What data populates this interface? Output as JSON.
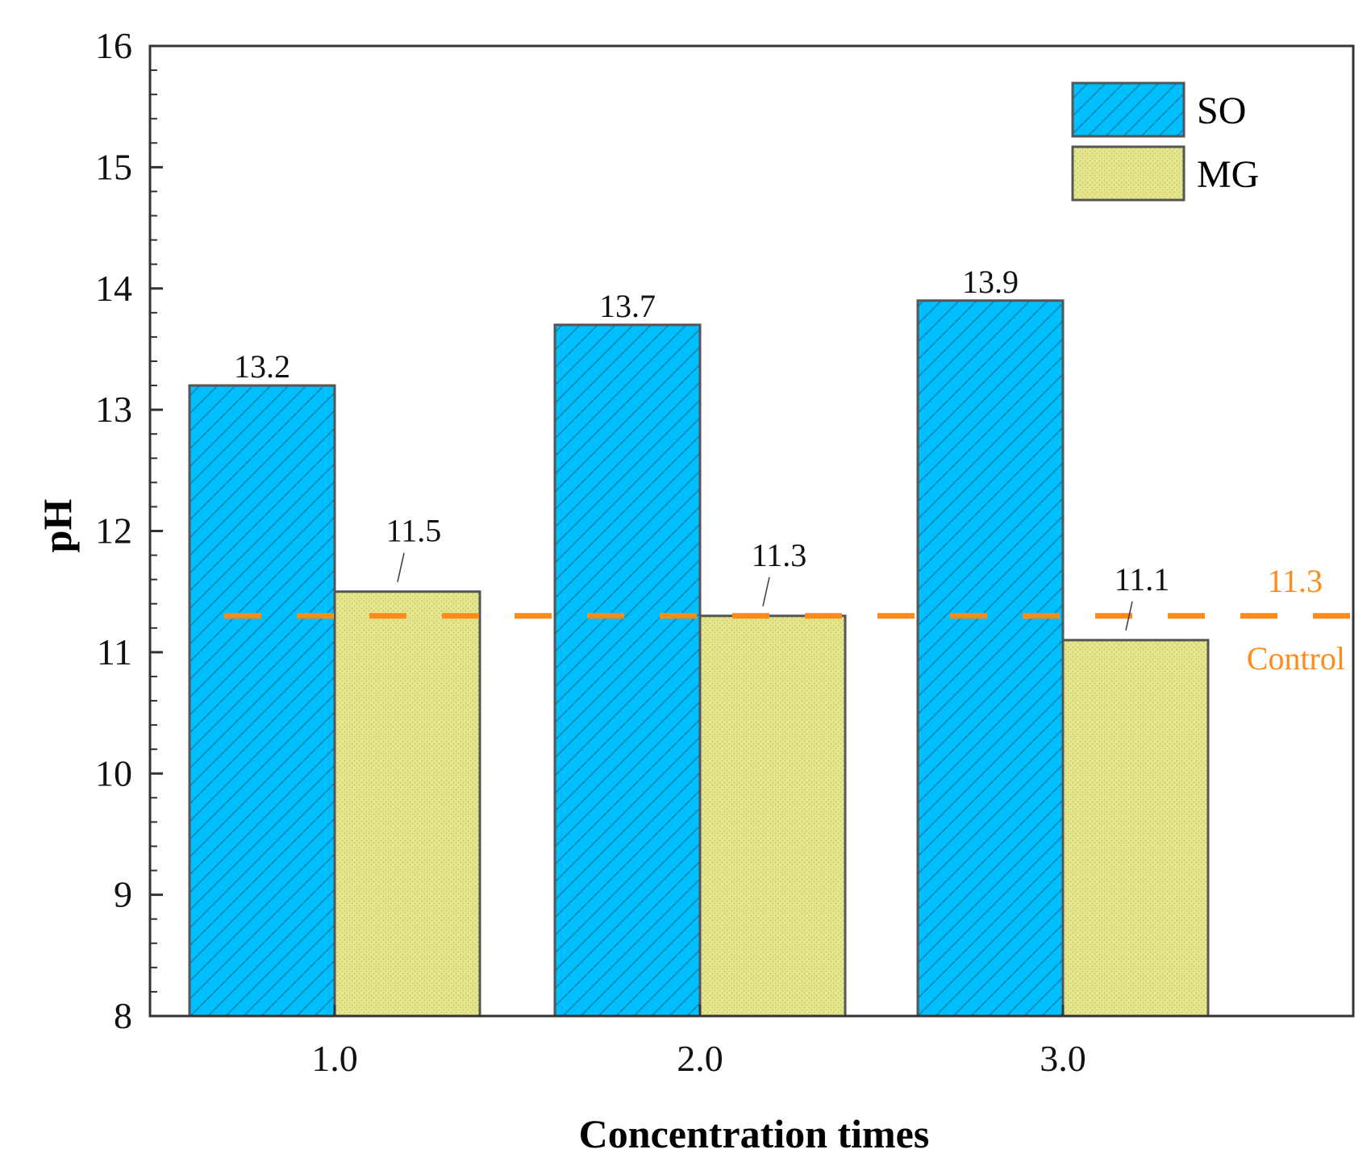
{
  "chart_data": {
    "type": "bar",
    "title": "",
    "xlabel": "Concentration times",
    "ylabel": "pH",
    "categories": [
      "1.0",
      "2.0",
      "3.0"
    ],
    "ylim": [
      8,
      16
    ],
    "yticks": [
      "8",
      "9",
      "10",
      "11",
      "12",
      "13",
      "14",
      "15",
      "16"
    ],
    "grid": false,
    "legend_position": "top-right",
    "series": [
      {
        "name": "SO",
        "values": [
          13.2,
          13.7,
          13.9
        ],
        "labels": [
          "13.2",
          "13.7",
          "13.9"
        ],
        "color": "#00BFFF",
        "pattern": "diagonal-hatch"
      },
      {
        "name": "MG",
        "values": [
          11.5,
          11.3,
          11.1
        ],
        "labels": [
          "11.5",
          "11.3",
          "11.1"
        ],
        "color": "#E6E68F",
        "pattern": "fine-dots"
      }
    ],
    "reference_line": {
      "value": 11.3,
      "value_label": "11.3",
      "label": "Control",
      "color": "#FF8C1A",
      "style": "dashed"
    }
  }
}
